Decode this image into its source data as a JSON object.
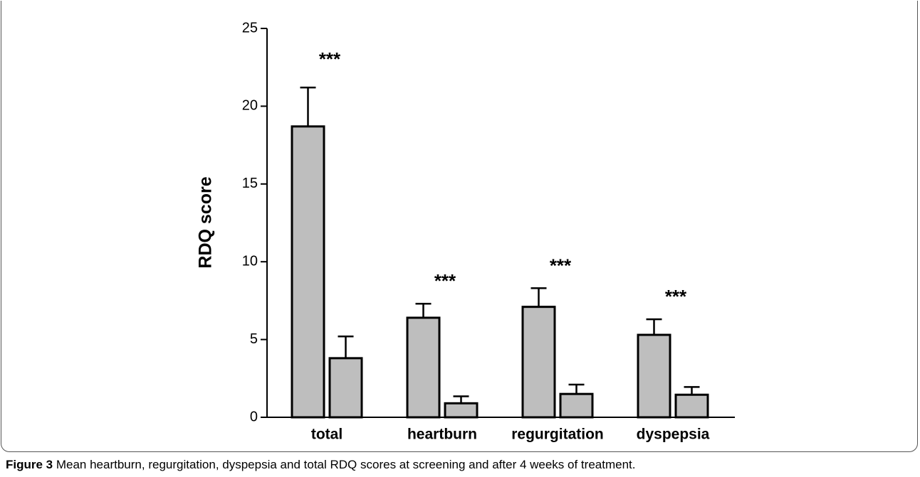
{
  "chart_data": {
    "type": "bar",
    "ylabel": "RDQ score",
    "categories": [
      "total",
      "heartburn",
      "regurgitation",
      "dyspepsia"
    ],
    "series": [
      {
        "color": "#bebebe",
        "values": [
          18.7,
          6.4,
          7.1,
          5.3
        ],
        "errors": [
          2.5,
          0.9,
          1.2,
          1.0
        ]
      },
      {
        "color": "#bebebe",
        "values": [
          3.8,
          0.9,
          1.5,
          1.45
        ],
        "errors": [
          1.4,
          0.45,
          0.6,
          0.5
        ]
      }
    ],
    "annotations": [
      "***",
      "***",
      "***",
      "***"
    ],
    "ylim": [
      0,
      25
    ],
    "yticks": [
      0,
      5,
      10,
      15,
      20,
      25
    ],
    "grid": false
  },
  "caption": {
    "label": "Figure 3",
    "text": "Mean heartburn, regurgitation, dyspepsia and total RDQ scores at screening and after 4 weeks of treatment."
  }
}
